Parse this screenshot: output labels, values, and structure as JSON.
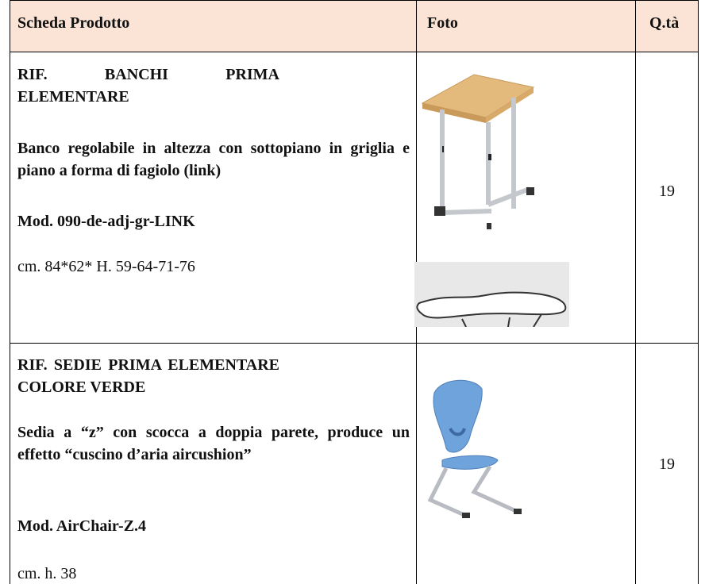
{
  "table": {
    "header": [
      "Scheda Prodotto",
      "Foto",
      "Q.tà"
    ],
    "rows": [
      {
        "title": "RIF. BANCHI PRIMA ELEMENTARE",
        "description": "Banco regolabile in altezza con sottopiano in griglia e piano a forma di fagiolo  (link)",
        "model": "Mod. 090-de-adj-gr-LINK",
        "dimensions": "cm. 84*62* H. 59-64-71-76",
        "quantity": 19
      },
      {
        "title": "RIF. SEDIE PRIMA ELEMENTARE COLORE VERDE",
        "description": "Sedia a “z” con scocca a doppia parete, produce un effetto “cuscino d’aria aircushion”",
        "model": "Mod. AirChair-Z.4",
        "dimensions": "cm. h. 38",
        "quantity": 19
      }
    ]
  }
}
